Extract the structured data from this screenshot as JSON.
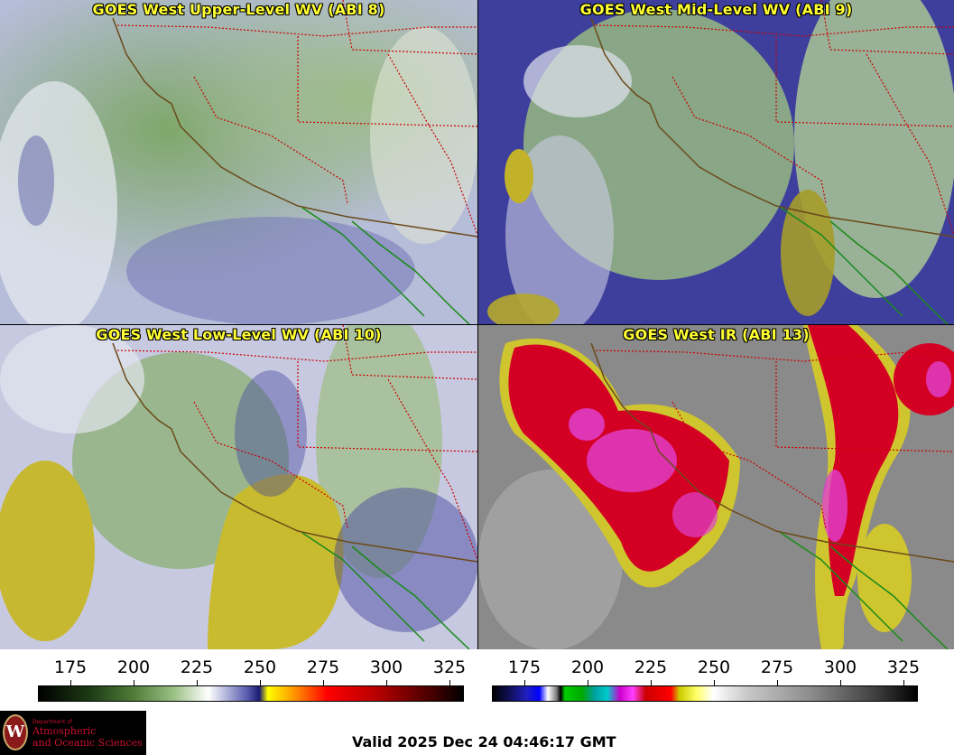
{
  "panels": [
    {
      "title": "GOES West Upper-Level WV (ABI 8)"
    },
    {
      "title": "GOES West Mid-Level WV (ABI 9)"
    },
    {
      "title": "GOES West Low-Level WV (ABI 10)"
    },
    {
      "title": "GOES West IR (ABI 13)"
    }
  ],
  "wv_scale": {
    "ticks": [
      "175",
      "200",
      "225",
      "250",
      "275",
      "300",
      "325"
    ]
  },
  "ir_scale": {
    "ticks": [
      "175",
      "200",
      "225",
      "250",
      "275",
      "300",
      "325"
    ]
  },
  "logo": {
    "seal": "W",
    "dept": "Department of",
    "line1": "Atmospheric",
    "line2": "and Oceanic Sciences"
  },
  "valid_time": "Valid 2025 Dec 24 04:46:17 GMT",
  "colors": {
    "state_border": "#cc0000",
    "coastline": "#6b4a1a",
    "mexico_coast": "#1a8a1a",
    "title": "#ffff33"
  }
}
